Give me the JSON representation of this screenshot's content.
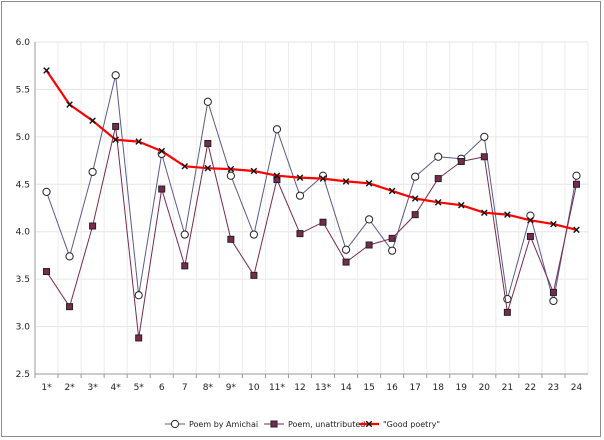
{
  "chart_data": {
    "type": "line",
    "categories": [
      "1*",
      "2*",
      "3*",
      "4*",
      "5*",
      "6",
      "7",
      "8*",
      "9*",
      "10",
      "11*",
      "12",
      "13*",
      "14",
      "15",
      "16",
      "17",
      "18",
      "19",
      "20",
      "21",
      "22",
      "23",
      "24"
    ],
    "ylim": [
      2.5,
      6.0
    ],
    "yticks": [
      2.5,
      3.0,
      3.5,
      4.0,
      4.5,
      5.0,
      5.5,
      6.0
    ],
    "ytick_labels": [
      "2.5",
      "3.0",
      "3.5",
      "4.0",
      "4.5",
      "5.0",
      "5.5",
      "6.0"
    ],
    "grid": true,
    "legend_position": "bottom",
    "series": [
      {
        "name": "Poem by Amichai",
        "color": "#5b5b8f",
        "marker": "circle",
        "values": [
          4.42,
          3.74,
          4.63,
          5.65,
          3.33,
          4.82,
          3.97,
          5.37,
          4.59,
          3.97,
          5.08,
          4.38,
          4.59,
          3.81,
          4.13,
          3.8,
          4.58,
          4.79,
          4.77,
          5.0,
          3.29,
          4.17,
          3.27,
          4.59
        ]
      },
      {
        "name": "Poem, unattributed",
        "color": "#7a2a4e",
        "marker": "square",
        "values": [
          3.58,
          3.21,
          4.06,
          5.11,
          2.88,
          4.45,
          3.64,
          4.93,
          3.92,
          3.54,
          4.55,
          3.98,
          4.1,
          3.68,
          3.86,
          3.93,
          4.18,
          4.56,
          4.74,
          4.79,
          3.15,
          3.95,
          3.36,
          4.5
        ]
      },
      {
        "name": "\"Good poetry\"",
        "color": "#ff0000",
        "marker": "x",
        "values": [
          5.7,
          5.34,
          5.17,
          4.97,
          4.95,
          4.85,
          4.69,
          4.67,
          4.66,
          4.64,
          4.59,
          4.57,
          4.56,
          4.53,
          4.51,
          4.43,
          4.35,
          4.31,
          4.28,
          4.2,
          4.18,
          4.12,
          4.08,
          4.02
        ]
      }
    ]
  }
}
